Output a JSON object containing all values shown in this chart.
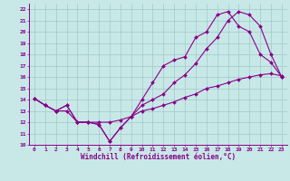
{
  "xlabel": "Windchill (Refroidissement éolien,°C)",
  "xlim": [
    -0.5,
    23.5
  ],
  "ylim": [
    10,
    22.5
  ],
  "xticks": [
    0,
    1,
    2,
    3,
    4,
    5,
    6,
    7,
    8,
    9,
    10,
    11,
    12,
    13,
    14,
    15,
    16,
    17,
    18,
    19,
    20,
    21,
    22,
    23
  ],
  "yticks": [
    10,
    11,
    12,
    13,
    14,
    15,
    16,
    17,
    18,
    19,
    20,
    21,
    22
  ],
  "bg_color": "#c8e8e8",
  "grid_color": "#a0c8c8",
  "line_color": "#880088",
  "line1_x": [
    0,
    1,
    2,
    3,
    4,
    5,
    6,
    7,
    8,
    9,
    10,
    11,
    12,
    13,
    14,
    15,
    16,
    17,
    18,
    19,
    20,
    21,
    22,
    23
  ],
  "line1_y": [
    14.1,
    13.5,
    13.0,
    13.5,
    12.0,
    12.0,
    11.8,
    10.3,
    11.5,
    12.5,
    14.0,
    15.5,
    17.0,
    17.5,
    17.8,
    19.5,
    20.0,
    21.5,
    21.8,
    20.5,
    20.0,
    18.0,
    17.3,
    16.0
  ],
  "line2_x": [
    0,
    1,
    2,
    3,
    4,
    5,
    6,
    7,
    8,
    9,
    10,
    11,
    12,
    13,
    14,
    15,
    16,
    17,
    18,
    19,
    20,
    21,
    22,
    23
  ],
  "line2_y": [
    14.1,
    13.5,
    13.0,
    13.5,
    12.0,
    12.0,
    11.8,
    10.3,
    11.5,
    12.5,
    13.5,
    14.0,
    14.5,
    15.5,
    16.2,
    17.2,
    18.5,
    19.5,
    21.0,
    21.8,
    21.5,
    20.5,
    18.0,
    16.0
  ],
  "line3_x": [
    0,
    1,
    2,
    3,
    4,
    5,
    6,
    7,
    8,
    9,
    10,
    11,
    12,
    13,
    14,
    15,
    16,
    17,
    18,
    19,
    20,
    21,
    22,
    23
  ],
  "line3_y": [
    14.1,
    13.5,
    13.0,
    13.0,
    12.0,
    12.0,
    12.0,
    12.0,
    12.2,
    12.5,
    13.0,
    13.2,
    13.5,
    13.8,
    14.2,
    14.5,
    15.0,
    15.2,
    15.5,
    15.8,
    16.0,
    16.2,
    16.3,
    16.1
  ]
}
